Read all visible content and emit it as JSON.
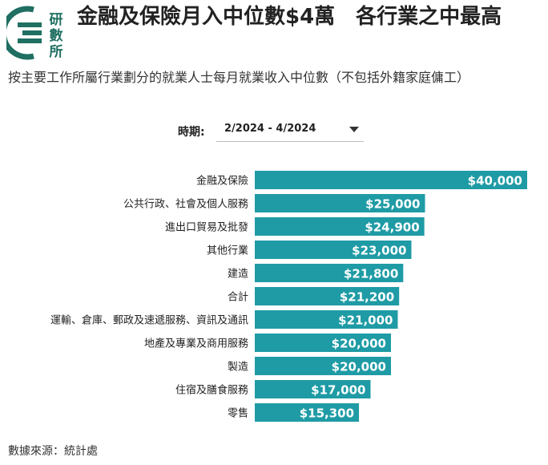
{
  "header": {
    "title": "金融及保險月入中位數$4萬　各行業之中最高",
    "subtitle": "按主要工作所屬行業劃分的就業人士每月就業收入中位數（不包括外籍家庭傭工）",
    "logo_text": [
      "研",
      "數",
      "所"
    ]
  },
  "filter": {
    "label": "時期:",
    "selected": "2/2024 - 4/2024"
  },
  "footer": {
    "source": "數據來源：統計處"
  },
  "colors": {
    "bar": "#1f9ba5",
    "bar_label": "#ffffff",
    "logo": "#1f6f62"
  },
  "chart_data": {
    "type": "bar",
    "orientation": "horizontal",
    "categories": [
      "金融及保險",
      "公共行政、社會及個人服務",
      "進出口貿易及批發",
      "其他行業",
      "建造",
      "合計",
      "運輸、倉庫、郵政及速遞服務、資訊及通訊",
      "地產及專業及商用服務",
      "製造",
      "住宿及膳食服務",
      "零售"
    ],
    "values": [
      40000,
      25000,
      24900,
      23000,
      21800,
      21200,
      21000,
      20000,
      20000,
      17000,
      15300
    ],
    "value_labels": [
      "$40,000",
      "$25,000",
      "$24,900",
      "$23,000",
      "$21,800",
      "$21,200",
      "$21,000",
      "$20,000",
      "$20,000",
      "$17,000",
      "$15,300"
    ],
    "xlim": [
      0,
      40000
    ],
    "grid": false,
    "legend": "none"
  }
}
